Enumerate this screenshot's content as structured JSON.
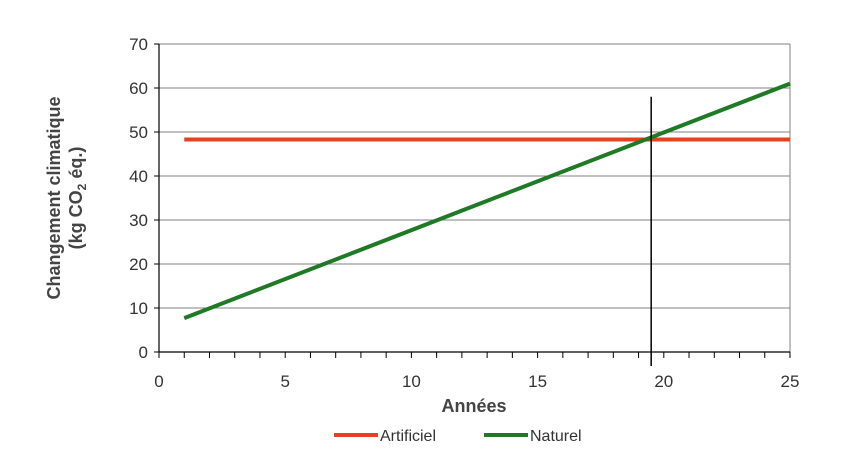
{
  "chart_data": {
    "type": "line",
    "xlabel": "Années",
    "ylabel_line1": "Changement climatique",
    "ylabel_line2_prefix": "(kg CO",
    "ylabel_line2_sub": "2",
    "ylabel_line2_suffix": " éq.)",
    "xlim": [
      0,
      25
    ],
    "ylim": [
      0,
      70
    ],
    "x_ticks": [
      0,
      5,
      10,
      15,
      20,
      25
    ],
    "y_ticks": [
      0,
      10,
      20,
      30,
      40,
      50,
      60,
      70
    ],
    "grid": "horizontal",
    "legend_position": "bottom",
    "series": [
      {
        "name": "Artificiel",
        "color": "#e8401c",
        "x": [
          1,
          25
        ],
        "y": [
          48.3,
          48.3
        ]
      },
      {
        "name": "Naturel",
        "color": "#1e7a24",
        "x": [
          1,
          25
        ],
        "y": [
          7.7,
          61
        ]
      }
    ],
    "reference_line": {
      "x": 19.5,
      "color": "#000000"
    }
  }
}
